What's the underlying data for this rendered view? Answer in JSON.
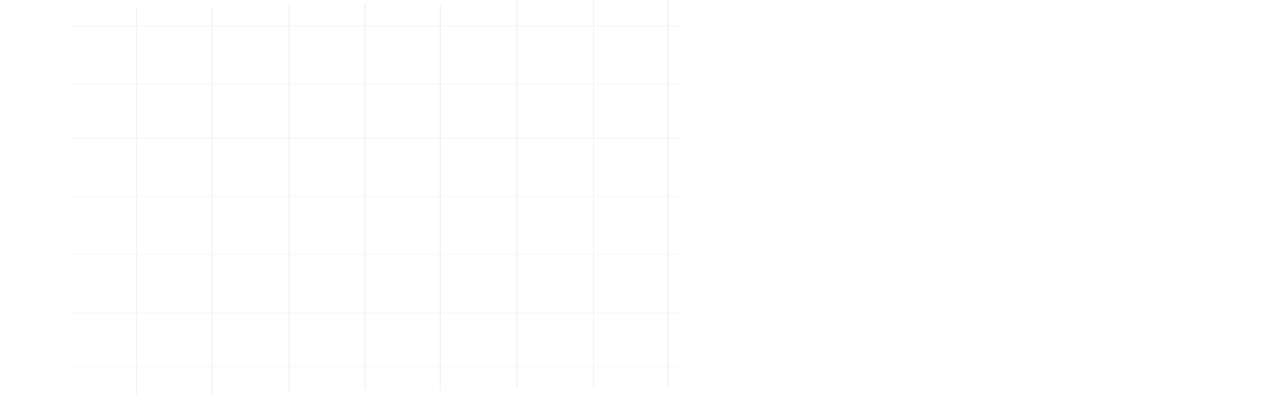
{
  "canvas": {
    "background": "#ffffff",
    "grid_line_color": "#e9edf1",
    "grid_line_color_horizontal": "#f1f3f5",
    "columns": 8,
    "rows": 7,
    "labels": []
  }
}
